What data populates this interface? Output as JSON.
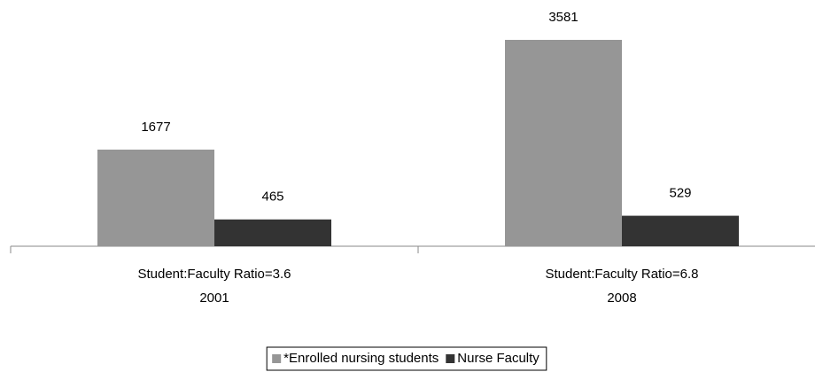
{
  "chart_data": {
    "type": "bar",
    "categories": [
      [
        "Student:Faculty Ratio=3.6",
        "2001"
      ],
      [
        "Student:Faculty Ratio=6.8",
        "2008"
      ]
    ],
    "series": [
      {
        "name": "*Enrolled nursing students",
        "color": "#969696",
        "values": [
          1677,
          3581
        ]
      },
      {
        "name": "Nurse Faculty",
        "color": "#333333",
        "values": [
          465,
          529
        ]
      }
    ],
    "legend": "bottom"
  }
}
